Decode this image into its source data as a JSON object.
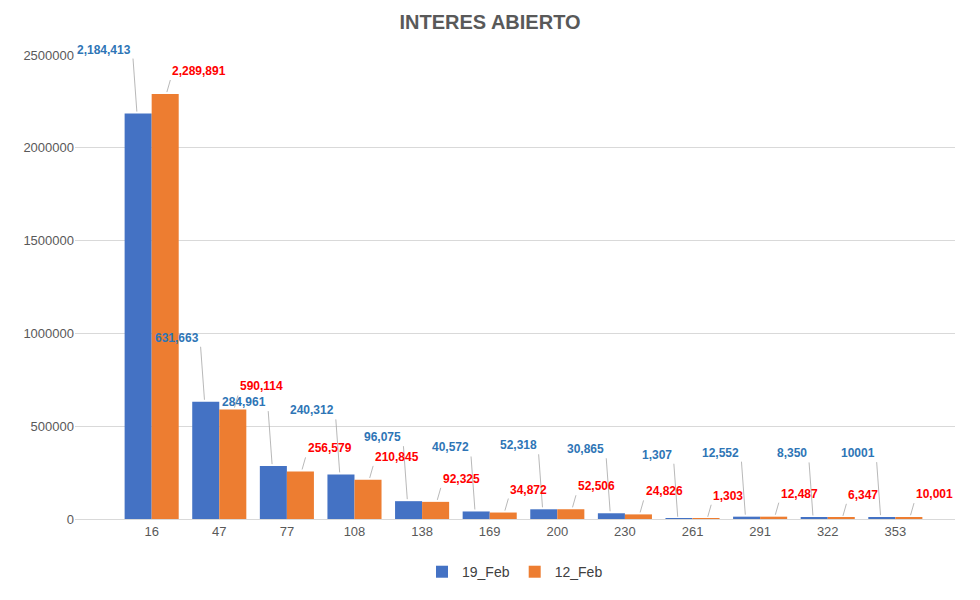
{
  "chart_data": {
    "type": "bar",
    "title": "INTERES ABIERTO",
    "categories": [
      "16",
      "47",
      "77",
      "108",
      "138",
      "169",
      "200",
      "230",
      "261",
      "291",
      "322",
      "353"
    ],
    "series": [
      {
        "name": "19_Feb",
        "color": "#4472c4",
        "values": [
          2184413,
          631663,
          284961,
          240312,
          96075,
          40572,
          52318,
          30865,
          1307,
          12552,
          8350,
          10001
        ],
        "value_labels": [
          "2,184,413",
          "631,663",
          "284,961",
          "240,312",
          "96,075",
          "40,572",
          "52,318",
          "30,865",
          "1,307",
          "12,552",
          "8,350",
          "10001"
        ]
      },
      {
        "name": "12_Feb",
        "color": "#ed7d31",
        "values": [
          2289891,
          590114,
          256579,
          210845,
          92325,
          34872,
          52506,
          24826,
          1303,
          12487,
          6347,
          10001
        ],
        "value_labels": [
          "2,289,891",
          "590,114",
          "256,579",
          "210,845",
          "92,325",
          "34,872",
          "52,506",
          "24,826",
          "1,303",
          "12,487",
          "6,347",
          "10,001"
        ]
      }
    ],
    "ylim": [
      0,
      2500000
    ],
    "yticks": [
      0,
      500000,
      1000000,
      1500000,
      2000000,
      2500000
    ],
    "grid": true,
    "legend": "bottom",
    "data_labels": true
  }
}
